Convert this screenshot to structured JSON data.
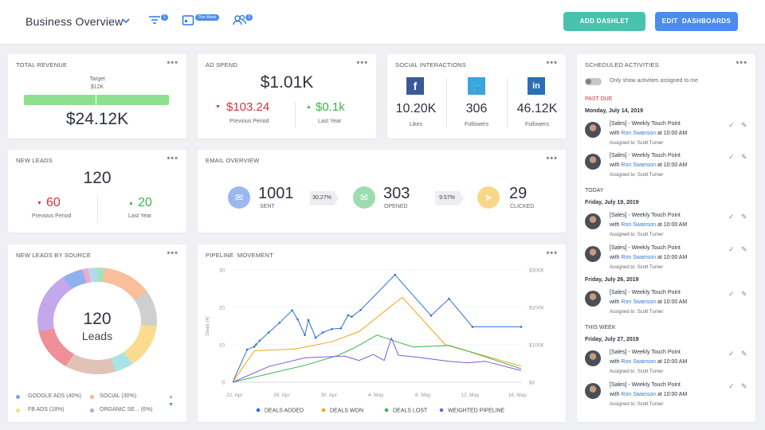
{
  "header": {
    "title": "Business Overview",
    "filter_badge": "1",
    "calendar_badge": "This Week",
    "users_badge": "3",
    "add_dashlet": "ADD DASHLET",
    "edit_dashboards": "EDIT  DASHBOARDS",
    "colors": {
      "teal": "#47c2ad",
      "blue": "#4a8cf0"
    }
  },
  "total_revenue": {
    "title": "TOTAL REVENUE",
    "target_label": "Target",
    "target_value": "$12K",
    "value": "$24.12K",
    "progress": 1.0
  },
  "ad_spend": {
    "title": "AD SPEND",
    "value": "$1.01K",
    "prev_value": "$103.24",
    "prev_label": "Previous Period",
    "year_value": "$0.1k",
    "year_label": "Last Year"
  },
  "social": {
    "title": "SOCIAL INTERACTIONS",
    "items": [
      {
        "icon": "facebook-icon",
        "glyph": "f",
        "value": "10.20K",
        "label": "Likes",
        "color": "#3b5998"
      },
      {
        "icon": "twitter-icon",
        "glyph": "🐦",
        "value": "306",
        "label": "Followers",
        "color": "#3aa4e0"
      },
      {
        "icon": "linkedin-icon",
        "glyph": "in",
        "value": "46.12K",
        "label": "Followers",
        "color": "#2c6db5"
      }
    ]
  },
  "new_leads": {
    "title": "NEW LEADS",
    "value": "120",
    "prev_value": "60",
    "prev_label": "Previous Period",
    "year_value": "20",
    "year_label": "Last Year"
  },
  "email": {
    "title": "EMAIL OVERVIEW",
    "sent_value": "1001",
    "sent_label": "SENT",
    "rate1": "30.27%",
    "opened_value": "303",
    "opened_label": "OPENED",
    "rate2": "9.57%",
    "clicked_value": "29",
    "clicked_label": "CLICKED"
  },
  "leads_source": {
    "title": "NEW LEADS BY SOURCE",
    "center_value": "120",
    "center_label": "Leads",
    "legend": [
      {
        "label": "GOOGLE ADS (40%)",
        "color": "#7ea6e8"
      },
      {
        "label": "SOCIAL (30%)",
        "color": "#f6b48c"
      },
      {
        "label": "FB ADS (18%)",
        "color": "#f8d983"
      },
      {
        "label": "ORGANIC SE... (6%)",
        "color": "#b9a4e6"
      }
    ]
  },
  "chart_data": {
    "type": "line",
    "title": "PIPELINE  MOVEMENT",
    "x": [
      "22. Apr",
      "26. Apr",
      "30. Apr",
      "4. May",
      "8. May",
      "12. May",
      "16. May"
    ],
    "ylim": [
      0,
      30
    ],
    "yticks": [
      "30",
      "20",
      "10",
      "0"
    ],
    "ylabel": "Deals (#)",
    "y2ticks": [
      "$300K",
      "$200K",
      "$100K",
      "$0"
    ],
    "y2lim": [
      0,
      300000
    ],
    "series": [
      {
        "name": "DEALS ADDED",
        "color": "#2f6fd8",
        "points": [
          [
            0,
            0
          ],
          [
            0.8,
            8.7
          ],
          [
            1.2,
            9.5
          ],
          [
            1.3,
            10.1
          ],
          [
            1.5,
            11.1
          ],
          [
            2.0,
            13.3
          ],
          [
            2.6,
            15.9
          ],
          [
            3.3,
            19.2
          ],
          [
            3.6,
            16.8
          ],
          [
            4.0,
            12.6
          ],
          [
            4.2,
            16.6
          ],
          [
            4.6,
            11.9
          ],
          [
            5.0,
            13.3
          ],
          [
            5.5,
            14.2
          ],
          [
            6.0,
            14.4
          ],
          [
            6.4,
            17.9
          ],
          [
            6.6,
            17.5
          ],
          [
            7.1,
            19.3
          ],
          [
            9.0,
            28.7
          ],
          [
            11.0,
            17.8
          ],
          [
            12.0,
            22.3
          ],
          [
            13.3,
            14.8
          ],
          [
            16.0,
            14.8
          ]
        ]
      },
      {
        "name": "DEALS WON",
        "color": "#f2a414",
        "points": [
          [
            0,
            0
          ],
          [
            1.2,
            8.4
          ],
          [
            3.5,
            8.9
          ],
          [
            5.5,
            10.8
          ],
          [
            7.0,
            13.5
          ],
          [
            9.4,
            22.7
          ],
          [
            11.8,
            10.0
          ],
          [
            16.0,
            4.3
          ]
        ]
      },
      {
        "name": "DEALS LOST",
        "color": "#3bb54a",
        "points": [
          [
            0,
            0
          ],
          [
            4.0,
            4.5
          ],
          [
            5.8,
            7.1
          ],
          [
            6.8,
            9.3
          ],
          [
            8.0,
            12.6
          ],
          [
            10.0,
            9.4
          ],
          [
            12.0,
            9.8
          ],
          [
            13.0,
            8.4
          ],
          [
            16.0,
            3.6
          ]
        ]
      },
      {
        "name": "WEIGHTED PIPELINE",
        "color": "#8557d6",
        "points": [
          [
            0,
            0
          ],
          [
            2.0,
            4.2
          ],
          [
            4.0,
            6.5
          ],
          [
            6.2,
            7.0
          ],
          [
            7.0,
            5.8
          ],
          [
            7.8,
            7.4
          ],
          [
            8.4,
            5.8
          ],
          [
            8.8,
            11.8
          ],
          [
            9.2,
            7.2
          ],
          [
            10.2,
            6.7
          ],
          [
            12.0,
            5.6
          ],
          [
            13.0,
            5.2
          ],
          [
            14.0,
            5.6
          ],
          [
            16.0,
            3.1
          ]
        ]
      }
    ]
  },
  "activities": {
    "title": "SCHEDULED ACTIVITIES",
    "toggle_label": "Only show activities assigned to me",
    "toggle_on": false,
    "past_due_label": "PAST DUE",
    "past_due_color": "#d8303a",
    "today_label": "TODAY",
    "this_week_label": "THIS WEEK",
    "date1": "Monday, July 14, 2019",
    "date2": "Friday, July 19, 2019",
    "date3": "Friday, July 26, 2019",
    "date4": "Friday, July 27, 2019",
    "item": {
      "l1": "[Sales] - Weekly Touch Point",
      "with": "with ",
      "name": "Ron Swanson",
      "time": " at 10:00 AM",
      "assigned": "Assigned to: Scott Turner"
    }
  }
}
